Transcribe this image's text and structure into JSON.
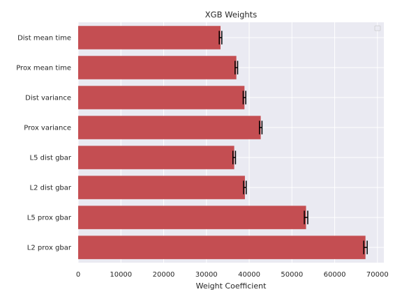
{
  "chart_data": {
    "type": "bar",
    "orientation": "horizontal",
    "title": "XGB Weights",
    "xlabel": "Weight Coefficient",
    "ylabel": "",
    "xlim": [
      0,
      71500
    ],
    "xticks": [
      0,
      10000,
      20000,
      30000,
      40000,
      50000,
      60000,
      70000
    ],
    "categories": [
      "Dist mean time",
      "Prox mean time",
      "Dist variance",
      "Prox variance",
      "L5 dist gbar",
      "L2 dist gbar",
      "L5 prox gbar",
      "L2 prox gbar"
    ],
    "values": [
      33300,
      37000,
      38900,
      42700,
      36500,
      39000,
      53300,
      67200
    ],
    "errors": [
      300,
      300,
      300,
      300,
      300,
      300,
      400,
      400
    ],
    "grid": true,
    "legend": "top-right",
    "colors": {
      "bar": "#c44e52",
      "background": "#eaeaf2",
      "grid": "#ffffff",
      "error": "#000000"
    }
  }
}
